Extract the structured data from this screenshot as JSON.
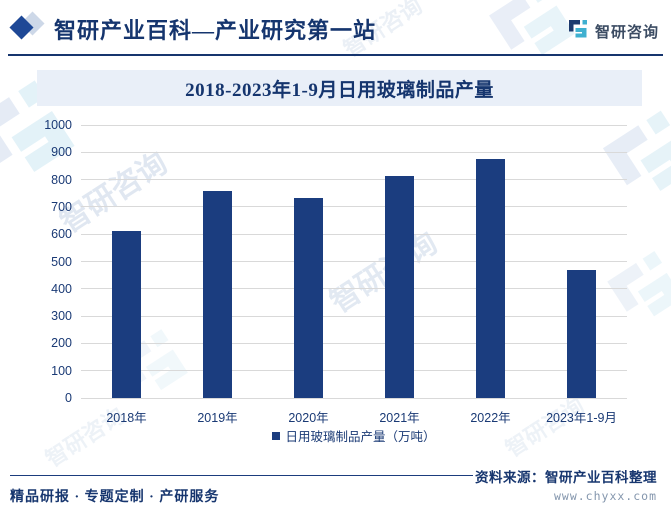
{
  "header": {
    "brand_title": "智研产业百科—产业研究第一站",
    "logo_text": "智研咨询"
  },
  "icons": {
    "brand_icon": "diamond-icon",
    "logo_icon": "zhiyan-logo-icon"
  },
  "colors": {
    "navy_text": "#15356e",
    "bar": "#1b3d7f",
    "title_box_bg": "#e9eff8",
    "gridline": "#d9d9d9",
    "logo_teal": "#3fb0d0",
    "watermark": "#c7d5e7"
  },
  "chart_data": {
    "type": "bar",
    "title": "2018-2023年1-9月日用玻璃制品产量",
    "categories": [
      "2018年",
      "2019年",
      "2020年",
      "2021年",
      "2022年",
      "2023年1-9月"
    ],
    "values": [
      613,
      760,
      732,
      814,
      877,
      468
    ],
    "series_name": "日用玻璃制品产量（万吨）",
    "legend_label": "日用玻璃制品产量（万吨）",
    "xlabel": "",
    "ylabel": "",
    "ylim": [
      0,
      1000
    ],
    "ytick_step": 100,
    "grid": true,
    "legend_position": "bottom"
  },
  "watermark": {
    "text": "智研咨询"
  },
  "footer": {
    "services": "精品研报 · 专题定制 · 产研服务",
    "source": "资料来源：智研产业百科整理",
    "website": "www.chyxx.com"
  }
}
